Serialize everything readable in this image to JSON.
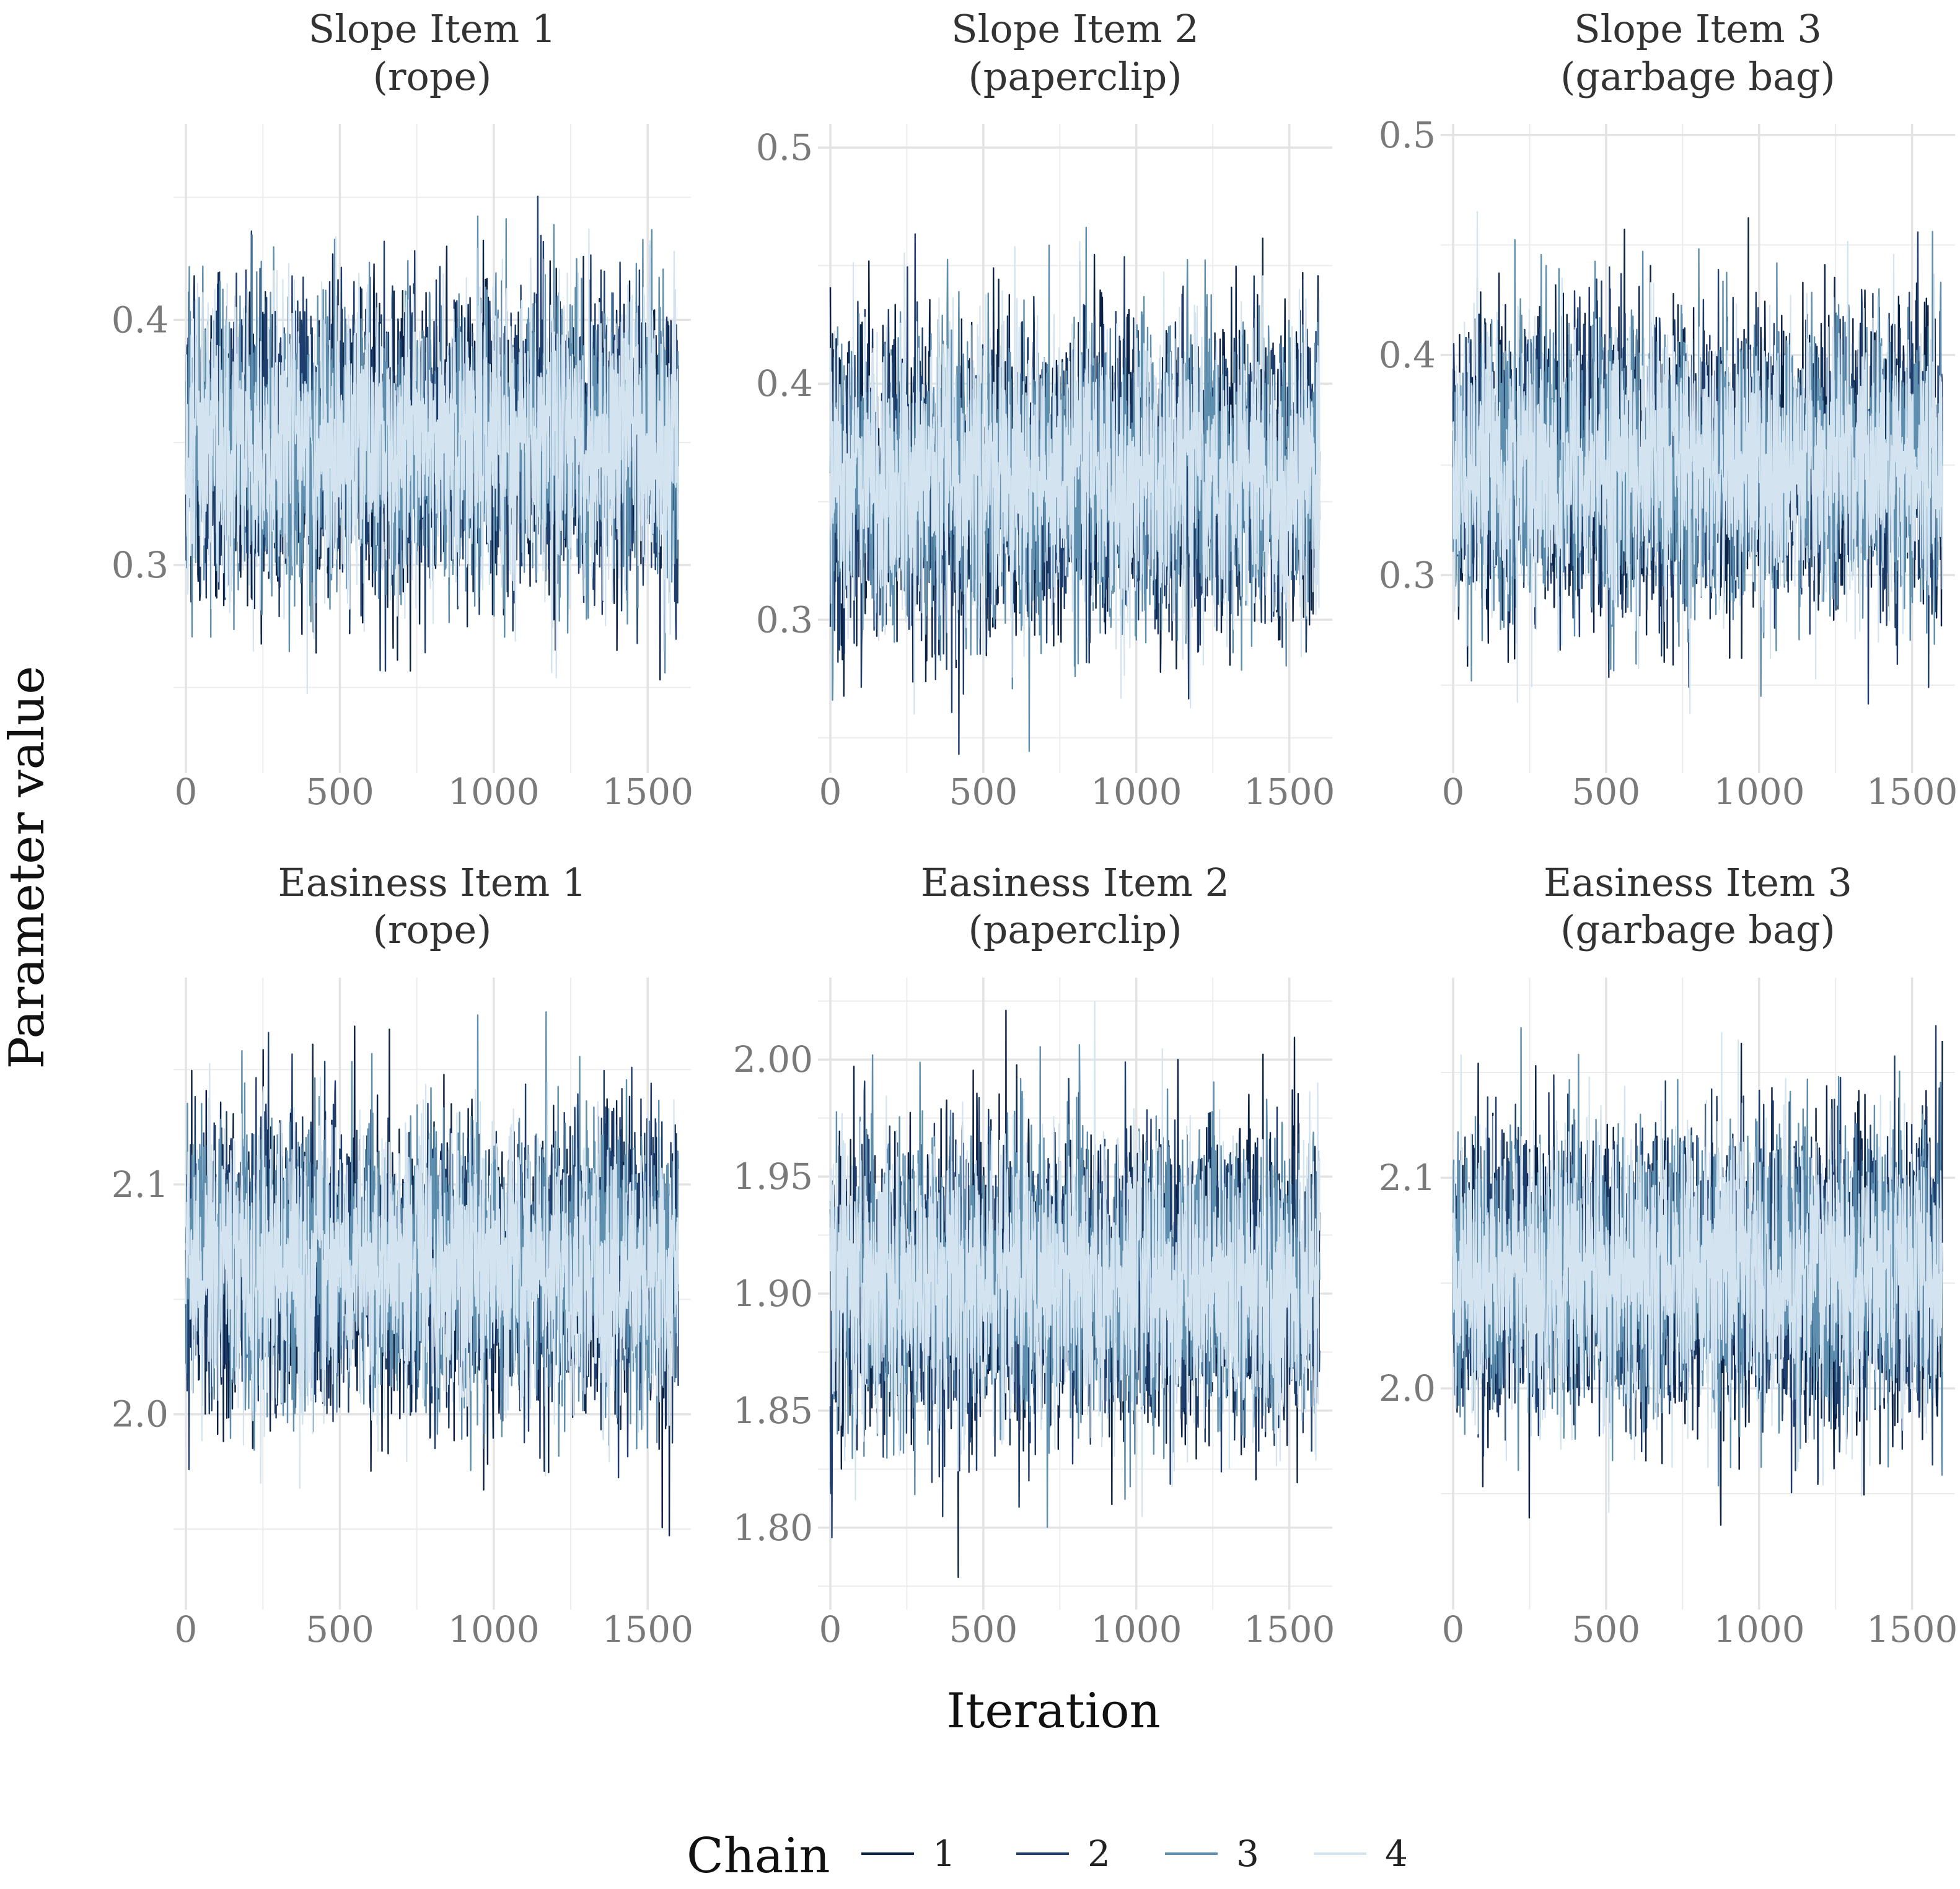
{
  "chart_data": {
    "type": "line",
    "figure_type": "MCMC trace plots (faceted)",
    "xlabel": "Iteration",
    "ylabel": "Parameter value",
    "legend": {
      "title": "Chain",
      "position": "bottom",
      "entries": [
        {
          "label": "1",
          "color": "#0b2347"
        },
        {
          "label": "2",
          "color": "#1e3e6e"
        },
        {
          "label": "3",
          "color": "#5f8fae"
        },
        {
          "label": "4",
          "color": "#d3e4f0"
        }
      ]
    },
    "iterations": 1600,
    "panels": [
      {
        "title_line1": "Slope Item 1",
        "title_line2": "(rope)",
        "xlim": [
          0,
          1600
        ],
        "xticks": [
          0,
          500,
          1000,
          1500
        ],
        "xtick_labels": [
          "0",
          "500",
          "1000",
          "1500"
        ],
        "ylim": [
          0.215,
          0.48
        ],
        "yticks": [
          0.3,
          0.4
        ],
        "ytick_labels": [
          "0.3",
          "0.4"
        ],
        "center": 0.35,
        "range_low": 0.225,
        "range_high": 0.472
      },
      {
        "title_line1": "Slope Item 2",
        "title_line2": "(paperclip)",
        "xlim": [
          0,
          1600
        ],
        "xticks": [
          0,
          500,
          1000,
          1500
        ],
        "xtick_labels": [
          "0",
          "500",
          "1000",
          "1500"
        ],
        "ylim": [
          0.235,
          0.51
        ],
        "yticks": [
          0.3,
          0.4,
          0.5
        ],
        "ytick_labels": [
          "0.3",
          "0.4",
          "0.5"
        ],
        "center": 0.36,
        "range_low": 0.243,
        "range_high": 0.505
      },
      {
        "title_line1": "Slope Item 3",
        "title_line2": "(garbage bag)",
        "xlim": [
          0,
          1600
        ],
        "xticks": [
          0,
          500,
          1000,
          1500
        ],
        "xtick_labels": [
          "0",
          "500",
          "1000",
          "1500"
        ],
        "ylim": [
          0.21,
          0.505
        ],
        "yticks": [
          0.3,
          0.4,
          0.5
        ],
        "ytick_labels": [
          "0.3",
          "0.4",
          "0.5"
        ],
        "center": 0.35,
        "range_low": 0.222,
        "range_high": 0.493
      },
      {
        "title_line1": "Easiness Item 1",
        "title_line2": "(rope)",
        "xlim": [
          0,
          1600
        ],
        "xticks": [
          0,
          500,
          1000,
          1500
        ],
        "xtick_labels": [
          "0",
          "500",
          "1000",
          "1500"
        ],
        "ylim": [
          1.915,
          2.19
        ],
        "yticks": [
          2.0,
          2.1
        ],
        "ytick_labels": [
          "2.0",
          "2.1"
        ],
        "center": 2.065,
        "range_low": 1.93,
        "range_high": 2.18
      },
      {
        "title_line1": "Easiness Item 2",
        "title_line2": "(paperclip)",
        "xlim": [
          0,
          1600
        ],
        "xticks": [
          0,
          500,
          1000,
          1500
        ],
        "xtick_labels": [
          "0",
          "500",
          "1000",
          "1500"
        ],
        "ylim": [
          1.765,
          2.035
        ],
        "yticks": [
          1.8,
          1.85,
          1.9,
          1.95,
          2.0
        ],
        "ytick_labels": [
          "1.80",
          "1.85",
          "1.90",
          "1.95",
          "2.00"
        ],
        "center": 1.905,
        "range_low": 1.775,
        "range_high": 2.027
      },
      {
        "title_line1": "Easiness Item 3",
        "title_line2": "(garbage bag)",
        "xlim": [
          0,
          1600
        ],
        "xticks": [
          0,
          500,
          1000,
          1500
        ],
        "xtick_labels": [
          "0",
          "500",
          "1000",
          "1500"
        ],
        "ylim": [
          1.895,
          2.195
        ],
        "yticks": [
          2.0,
          2.1
        ],
        "ytick_labels": [
          "2.0",
          "2.1"
        ],
        "center": 2.055,
        "range_low": 1.91,
        "range_high": 2.185
      }
    ]
  }
}
